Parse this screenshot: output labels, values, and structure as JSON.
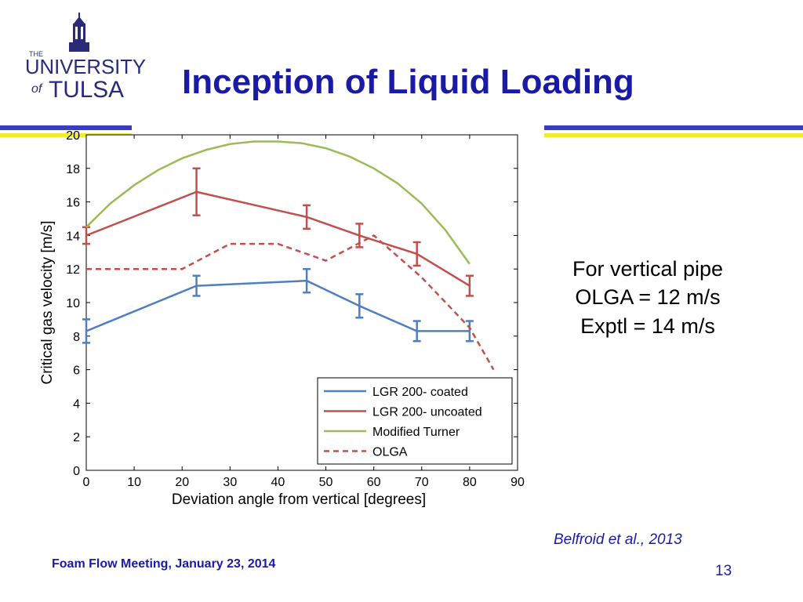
{
  "logo": {
    "the": "THE",
    "university": "UNIVERSITY",
    "of": "of",
    "tulsa": "TULSA"
  },
  "slide": {
    "title": "Inception of Liquid Loading",
    "note_lines": [
      "For vertical pipe",
      "OLGA = 12 m/s",
      "Exptl = 14 m/s"
    ],
    "citation": "Belfroid et al., 2013",
    "footer": "Foam Flow Meeting, January 23, 2014",
    "page_number": "13"
  },
  "colors": {
    "title": "#1a1aa6",
    "band_blue": "#3b3bbd",
    "band_yellow": "#f2ec2e",
    "lgr_coated": "#4f7fbf",
    "lgr_uncoated": "#c0504d",
    "modified_turner": "#9bbb59",
    "olga": "#c0504d"
  },
  "chart_data": {
    "type": "line",
    "title": "",
    "xlabel": "Deviation angle from vertical [degrees]",
    "ylabel": "Critical gas velocity [m/s]",
    "xlim": [
      0,
      90
    ],
    "ylim": [
      0,
      20
    ],
    "xticks": [
      0,
      10,
      20,
      30,
      40,
      50,
      60,
      70,
      80,
      90
    ],
    "yticks": [
      0,
      2,
      4,
      6,
      8,
      10,
      12,
      14,
      16,
      18,
      20
    ],
    "grid": false,
    "legend_position": "bottom-right",
    "series": [
      {
        "name": "LGR 200- coated",
        "color": "#4f7fbf",
        "style": "solid",
        "x": [
          0,
          23,
          46,
          57,
          69,
          80
        ],
        "y": [
          8.3,
          11.0,
          11.3,
          9.8,
          8.3,
          8.3
        ],
        "error": [
          0.7,
          0.6,
          0.7,
          0.7,
          0.6,
          0.6
        ]
      },
      {
        "name": "LGR 200- uncoated",
        "color": "#c0504d",
        "style": "solid",
        "x": [
          0,
          23,
          46,
          57,
          69,
          80
        ],
        "y": [
          14.0,
          16.6,
          15.1,
          14.0,
          12.9,
          11.0
        ],
        "error": [
          0.5,
          1.4,
          0.7,
          0.7,
          0.7,
          0.6
        ]
      },
      {
        "name": "Modified Turner",
        "color": "#9bbb59",
        "style": "solid",
        "x": [
          0,
          5,
          10,
          15,
          20,
          25,
          30,
          35,
          40,
          45,
          50,
          55,
          60,
          65,
          70,
          75,
          80
        ],
        "y": [
          14.5,
          15.9,
          17.0,
          17.9,
          18.6,
          19.1,
          19.45,
          19.6,
          19.6,
          19.5,
          19.2,
          18.7,
          18.0,
          17.1,
          15.9,
          14.3,
          12.3
        ]
      },
      {
        "name": "OLGA",
        "color": "#c0504d",
        "style": "dashed",
        "x": [
          0,
          20,
          30,
          40,
          50,
          60,
          70,
          80,
          85
        ],
        "y": [
          12.0,
          12.0,
          13.5,
          13.5,
          12.5,
          14.0,
          11.5,
          8.5,
          6.0
        ]
      }
    ]
  }
}
